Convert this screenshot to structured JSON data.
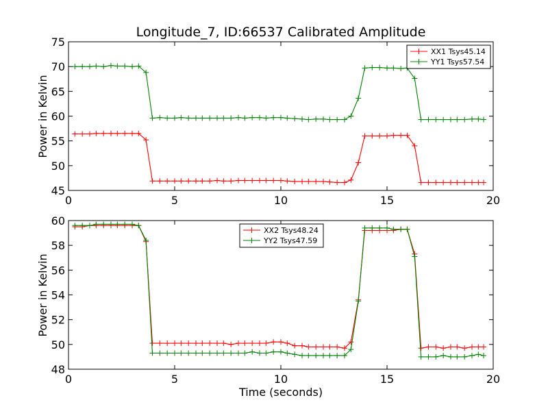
{
  "chart_data": [
    {
      "type": "line",
      "title": "Longitude_7, ID:66537 Calibrated Amplitude",
      "xlabel": "",
      "ylabel": "Power in Kelvin",
      "xlim": [
        0,
        20
      ],
      "ylim": [
        45,
        75
      ],
      "x_ticks": [
        "0",
        "5",
        "10",
        "15",
        "20"
      ],
      "y_ticks": [
        "45",
        "50",
        "55",
        "60",
        "65",
        "70",
        "75"
      ],
      "grid": false,
      "legend_position": "upper right",
      "x": [
        0.3,
        0.65,
        1.0,
        1.3,
        1.65,
        2.0,
        2.3,
        2.65,
        3.0,
        3.3,
        3.65,
        3.95,
        4.3,
        4.65,
        5.0,
        5.3,
        5.65,
        6.0,
        6.3,
        6.65,
        7.0,
        7.3,
        7.65,
        8.0,
        8.3,
        8.65,
        9.0,
        9.3,
        9.65,
        10.0,
        10.3,
        10.65,
        11.0,
        11.3,
        11.65,
        12.0,
        12.3,
        12.65,
        13.0,
        13.3,
        13.65,
        13.95,
        14.3,
        14.65,
        15.0,
        15.3,
        15.65,
        15.95,
        16.3,
        16.6,
        16.95,
        17.3,
        17.65,
        18.0,
        18.3,
        18.65,
        19.0,
        19.3,
        19.55
      ],
      "series": [
        {
          "name": "XX1 Tsys45.14",
          "color": "#ff0000",
          "values": [
            56.4,
            56.4,
            56.4,
            56.5,
            56.5,
            56.5,
            56.5,
            56.5,
            56.5,
            56.5,
            55.2,
            46.9,
            46.9,
            46.9,
            46.9,
            46.9,
            46.9,
            46.9,
            46.9,
            46.9,
            47.0,
            46.9,
            46.9,
            47.0,
            47.0,
            47.0,
            47.0,
            47.0,
            47.0,
            47.0,
            46.9,
            46.8,
            46.8,
            46.8,
            46.8,
            46.8,
            46.7,
            46.6,
            46.6,
            47.1,
            50.6,
            56.0,
            56.0,
            56.0,
            56.0,
            56.1,
            56.1,
            56.1,
            54.0,
            46.6,
            46.6,
            46.6,
            46.6,
            46.6,
            46.6,
            46.6,
            46.6,
            46.6,
            46.6
          ]
        },
        {
          "name": "YY1 Tsys57.54",
          "color": "#008000",
          "values": [
            70.0,
            70.0,
            70.0,
            70.1,
            70.0,
            70.2,
            70.1,
            70.1,
            70.0,
            70.1,
            68.8,
            59.6,
            59.7,
            59.6,
            59.6,
            59.7,
            59.6,
            59.6,
            59.6,
            59.6,
            59.6,
            59.6,
            59.6,
            59.7,
            59.6,
            59.7,
            59.7,
            59.6,
            59.7,
            59.7,
            59.6,
            59.5,
            59.4,
            59.3,
            59.4,
            59.4,
            59.3,
            59.3,
            59.3,
            60.0,
            63.6,
            69.7,
            69.8,
            69.8,
            69.7,
            69.7,
            69.6,
            69.7,
            67.6,
            59.3,
            59.3,
            59.3,
            59.3,
            59.3,
            59.3,
            59.3,
            59.4,
            59.4,
            59.3
          ]
        }
      ]
    },
    {
      "type": "line",
      "title": "",
      "xlabel": "Time (seconds)",
      "ylabel": "Power in Kelvin",
      "xlim": [
        0,
        20
      ],
      "ylim": [
        48,
        60
      ],
      "x_ticks": [
        "0",
        "5",
        "10",
        "15",
        "20"
      ],
      "y_ticks": [
        "48",
        "50",
        "52",
        "54",
        "56",
        "58",
        "60"
      ],
      "grid": false,
      "legend_position": "upper center",
      "x": [
        0.3,
        0.65,
        1.0,
        1.3,
        1.65,
        2.0,
        2.3,
        2.65,
        3.0,
        3.3,
        3.65,
        3.95,
        4.3,
        4.65,
        5.0,
        5.3,
        5.65,
        6.0,
        6.3,
        6.65,
        7.0,
        7.3,
        7.65,
        8.0,
        8.3,
        8.65,
        9.0,
        9.3,
        9.65,
        10.0,
        10.3,
        10.65,
        11.0,
        11.3,
        11.65,
        12.0,
        12.3,
        12.65,
        13.0,
        13.3,
        13.65,
        13.95,
        14.3,
        14.65,
        15.0,
        15.3,
        15.65,
        15.95,
        16.3,
        16.6,
        16.95,
        17.3,
        17.65,
        18.0,
        18.3,
        18.65,
        19.0,
        19.3,
        19.55
      ],
      "series": [
        {
          "name": "XX2 Tsys48.24",
          "color": "#ff0000",
          "values": [
            59.5,
            59.5,
            59.6,
            59.6,
            59.6,
            59.6,
            59.6,
            59.6,
            59.6,
            59.6,
            58.3,
            50.1,
            50.1,
            50.1,
            50.1,
            50.1,
            50.1,
            50.1,
            50.1,
            50.1,
            50.1,
            50.1,
            50.0,
            50.1,
            50.1,
            50.1,
            50.1,
            50.1,
            50.2,
            50.2,
            50.1,
            49.9,
            49.9,
            49.8,
            49.8,
            49.8,
            49.8,
            49.8,
            49.7,
            50.2,
            53.6,
            59.2,
            59.2,
            59.2,
            59.2,
            59.2,
            59.3,
            59.3,
            57.3,
            49.7,
            49.8,
            49.8,
            49.7,
            49.8,
            49.8,
            49.7,
            49.8,
            49.8,
            49.8
          ]
        },
        {
          "name": "YY2 Tsys47.59",
          "color": "#008000",
          "values": [
            59.6,
            59.6,
            59.6,
            59.7,
            59.7,
            59.7,
            59.7,
            59.7,
            59.7,
            59.6,
            58.4,
            49.3,
            49.3,
            49.3,
            49.3,
            49.3,
            49.3,
            49.3,
            49.3,
            49.3,
            49.3,
            49.3,
            49.3,
            49.3,
            49.3,
            49.4,
            49.3,
            49.3,
            49.4,
            49.4,
            49.3,
            49.2,
            49.1,
            49.1,
            49.1,
            49.1,
            49.1,
            49.1,
            49.1,
            49.6,
            53.5,
            59.4,
            59.4,
            59.4,
            59.4,
            59.3,
            59.3,
            59.3,
            57.1,
            49.0,
            49.0,
            49.0,
            49.1,
            49.0,
            49.0,
            49.0,
            49.1,
            49.2,
            49.1
          ]
        }
      ]
    }
  ]
}
